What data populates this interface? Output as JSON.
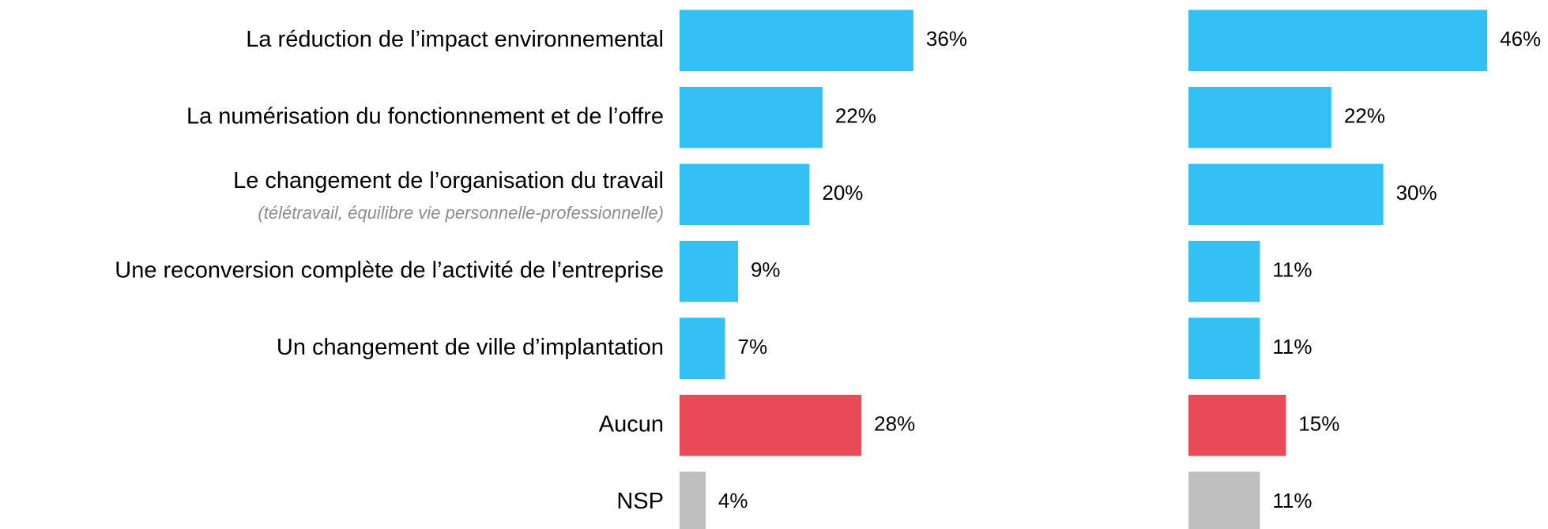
{
  "chart_data": {
    "type": "bar",
    "orientation": "horizontal",
    "categories": [
      "La réduction de l’impact environnemental",
      "La numérisation du fonctionnement et de l’offre",
      "Le changement de l’organisation du travail",
      "Une reconversion complète de l’activité de l’entreprise",
      "Un changement de ville d’implantation",
      "Aucun",
      "NSP"
    ],
    "annotation": "(télétravail, équilibre vie personnelle-professionnelle)",
    "colors": [
      "#35c0f4",
      "#35c0f4",
      "#35c0f4",
      "#35c0f4",
      "#35c0f4",
      "#e84a57",
      "#bfbfbf"
    ],
    "series": [
      {
        "values": [
          36,
          22,
          20,
          9,
          7,
          28,
          4
        ],
        "value_labels": [
          "36%",
          "22%",
          "20%",
          "9%",
          "7%",
          "28%",
          "4%"
        ]
      },
      {
        "values": [
          46,
          22,
          30,
          11,
          11,
          15,
          11
        ],
        "value_labels": [
          "46%",
          "22%",
          "30%",
          "11%",
          "11%",
          "15%",
          "11%"
        ]
      }
    ]
  }
}
